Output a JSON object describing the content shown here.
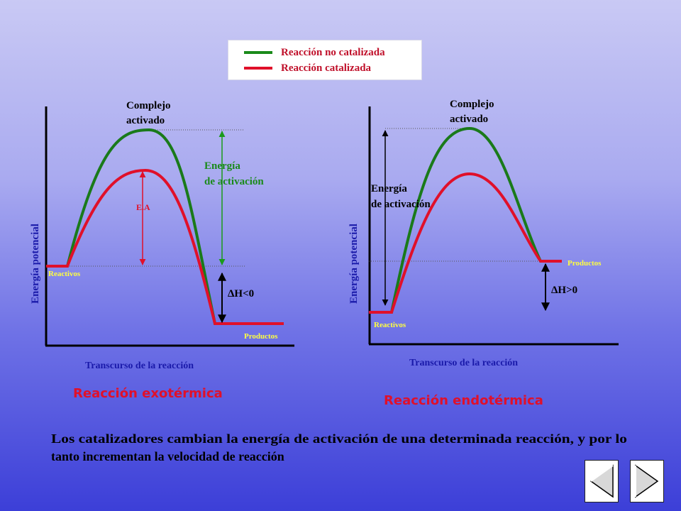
{
  "legend": {
    "uncatalyzed": "Reacción no catalizada",
    "catalyzed": "Reacción  catalizada"
  },
  "exo": {
    "complex_line1": "Complejo",
    "complex_line2": "activado",
    "energy_line1": "Energía",
    "energy_line2": "de activación",
    "ea_label": "E.A",
    "ylabel": "Energía potencial",
    "reactants": "Reactivos",
    "products": "Productos",
    "delta_h": "ΔH<0",
    "xlabel": "Transcurso de la reacción",
    "title": "Reacción  exotérmica"
  },
  "endo": {
    "complex_line1": "Complejo",
    "complex_line2": "activado",
    "energy_line1": "Energía",
    "energy_line2": "de activación",
    "ylabel": "Energía potencial",
    "reactants": "Reactivos",
    "products": "Productos",
    "delta_h": "ΔH>0",
    "xlabel": "Transcurso de la reacción",
    "title": "Reacción  endotérmica"
  },
  "footer": {
    "line1": "Los catalizadores cambian la energía de activación de una determinada reacción, y por lo",
    "line2": "tanto incrementan la velocidad de reacción"
  },
  "colors": {
    "uncatalyzed": "#1a7a1a",
    "catalyzed": "#e0102a",
    "title": "#e0102a",
    "label_yellow": "#ffff40",
    "axis_label": "#1a1aaa",
    "arrow_green": "#1a9a1a"
  },
  "nav": {
    "prev_icon": "triangle-left-icon",
    "next_icon": "triangle-right-icon"
  }
}
